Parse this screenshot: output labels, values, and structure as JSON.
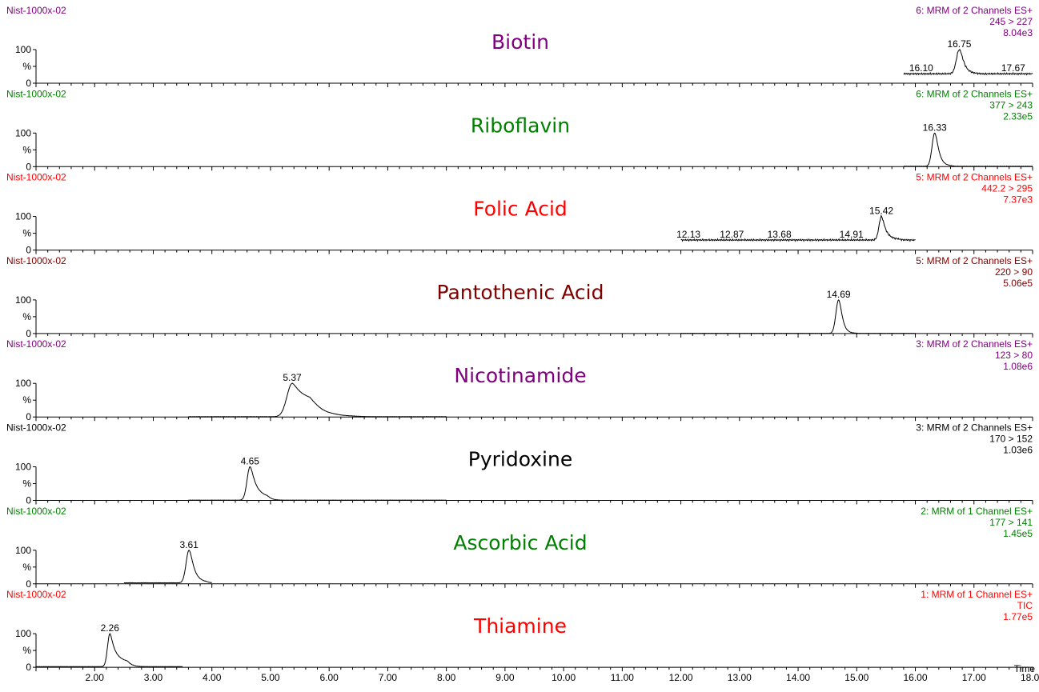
{
  "chart_data": {
    "type": "line",
    "xlabel": "Time",
    "xlim": [
      1.0,
      18.0
    ],
    "x_ticks": [
      "2.00",
      "3.00",
      "4.00",
      "5.00",
      "6.00",
      "7.00",
      "8.00",
      "9.00",
      "10.00",
      "11.00",
      "12.00",
      "13.00",
      "14.00",
      "15.00",
      "16.00",
      "17.00",
      "18.00"
    ],
    "y_ticks": [
      "0",
      "%",
      "100"
    ],
    "panels": [
      {
        "sample": "Nist-1000x-02",
        "compound": "Biotin",
        "color": "#800080",
        "function": "6: MRM of 2 Channels ES+",
        "transition": "245 > 227",
        "intensity": "8.04e3",
        "trace_range": [
          15.8,
          18.0
        ],
        "baseline_pct": 28,
        "peaks": [
          {
            "rt": 16.75,
            "height_pct": 100,
            "width": 0.05,
            "tail": 0.06
          }
        ],
        "rt_labels": [
          {
            "rt": 16.75,
            "text": "16.75",
            "pct": 100
          },
          {
            "rt": 16.1,
            "text": "16.10",
            "pct": 28
          },
          {
            "rt": 17.67,
            "text": "17.67",
            "pct": 28
          }
        ]
      },
      {
        "sample": "Nist-1000x-02",
        "compound": "Riboflavin",
        "color": "#008000",
        "function": "6: MRM of 2 Channels ES+",
        "transition": "377 > 243",
        "intensity": "2.33e5",
        "trace_range": [
          15.8,
          18.0
        ],
        "baseline_pct": 1,
        "peaks": [
          {
            "rt": 16.33,
            "height_pct": 100,
            "width": 0.045,
            "tail": 0.06
          }
        ],
        "rt_labels": [
          {
            "rt": 16.33,
            "text": "16.33",
            "pct": 100
          }
        ]
      },
      {
        "sample": "Nist-1000x-02",
        "compound": "Folic Acid",
        "color": "#ff0000",
        "function": "5: MRM of 2 Channels ES+",
        "transition": "442.2 > 295",
        "intensity": "7.37e3",
        "trace_range": [
          12.0,
          16.0
        ],
        "baseline_pct": 30,
        "peaks": [
          {
            "rt": 15.42,
            "height_pct": 100,
            "width": 0.04,
            "tail": 0.08
          }
        ],
        "rt_labels": [
          {
            "rt": 15.42,
            "text": "15.42",
            "pct": 100
          },
          {
            "rt": 12.13,
            "text": "12.13",
            "pct": 30
          },
          {
            "rt": 12.87,
            "text": "12.87",
            "pct": 30
          },
          {
            "rt": 13.68,
            "text": "13.68",
            "pct": 30
          },
          {
            "rt": 14.91,
            "text": "14.91",
            "pct": 30
          }
        ]
      },
      {
        "sample": "Nist-1000x-02",
        "compound": "Pantothenic Acid",
        "color": "#800000",
        "function": "5: MRM of 2 Channels ES+",
        "transition": "220 > 90",
        "intensity": "5.06e5",
        "trace_range": [
          12.0,
          16.0
        ],
        "baseline_pct": 0.5,
        "peaks": [
          {
            "rt": 14.69,
            "height_pct": 100,
            "width": 0.045,
            "tail": 0.05
          }
        ],
        "rt_labels": [
          {
            "rt": 14.69,
            "text": "14.69",
            "pct": 100
          }
        ]
      },
      {
        "sample": "Nist-1000x-02",
        "compound": "Nicotinamide",
        "color": "#800080",
        "function": "3: MRM of 2 Channels ES+",
        "transition": "123 > 80",
        "intensity": "1.08e6",
        "trace_range": [
          3.6,
          8.0
        ],
        "baseline_pct": 0.8,
        "peaks": [
          {
            "rt": 5.37,
            "height_pct": 100,
            "width": 0.09,
            "tail": 0.2
          },
          {
            "rt": 6.1,
            "height_pct": 5,
            "width": 0.15,
            "tail": 0.1
          }
        ],
        "rt_labels": [
          {
            "rt": 5.37,
            "text": "5.37",
            "pct": 100
          }
        ]
      },
      {
        "sample": "Nist-1000x-02",
        "compound": "Pyridoxine",
        "color": "#000000",
        "function": "3: MRM of 2 Channels ES+",
        "transition": "170 > 152",
        "intensity": "1.03e6",
        "trace_range": [
          3.6,
          8.0
        ],
        "baseline_pct": 0.8,
        "peaks": [
          {
            "rt": 4.65,
            "height_pct": 100,
            "width": 0.05,
            "tail": 0.1
          }
        ],
        "rt_labels": [
          {
            "rt": 4.65,
            "text": "4.65",
            "pct": 100
          }
        ]
      },
      {
        "sample": "Nist-1000x-02",
        "compound": "Ascorbic Acid",
        "color": "#008000",
        "function": "2: MRM of 1 Channel ES+",
        "transition": "177 > 141",
        "intensity": "1.45e5",
        "trace_range": [
          2.5,
          4.0
        ],
        "baseline_pct": 3,
        "peaks": [
          {
            "rt": 3.61,
            "height_pct": 100,
            "width": 0.05,
            "tail": 0.07
          }
        ],
        "rt_labels": [
          {
            "rt": 3.61,
            "text": "3.61",
            "pct": 100
          }
        ]
      },
      {
        "sample": "Nist-1000x-02",
        "compound": "Thiamine",
        "color": "#ff0000",
        "function": "1: MRM of 1 Channel ES+",
        "transition": "TIC",
        "intensity": "1.77e5",
        "trace_range": [
          1.0,
          3.5
        ],
        "baseline_pct": 2,
        "peaks": [
          {
            "rt": 2.26,
            "height_pct": 100,
            "width": 0.04,
            "tail": 0.12
          }
        ],
        "rt_labels": [
          {
            "rt": 2.26,
            "text": "2.26",
            "pct": 100
          }
        ]
      }
    ]
  }
}
